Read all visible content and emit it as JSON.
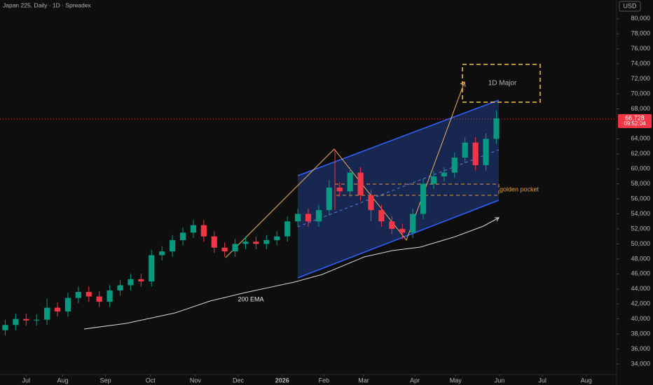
{
  "chart_data": {
    "type": "candlestick",
    "title": "Japan 225, Daily · 1D · Spreadex",
    "currency": "USD",
    "last_price_label": "66,728",
    "countdown": "09:52:04",
    "annotations": {
      "major": "1D Major",
      "pocket": "golden pocket",
      "ema": "200 EMA"
    },
    "up_color": "#089981",
    "down_color": "#f23645",
    "grid": false,
    "xlim": [
      -0.5,
      58.5
    ],
    "xticks": [
      {
        "value": 2.0,
        "label": "Jul"
      },
      {
        "value": 5.5,
        "label": "Aug"
      },
      {
        "value": 9.6,
        "label": "Sep"
      },
      {
        "value": 13.9,
        "label": "Oct"
      },
      {
        "value": 18.2,
        "label": "Nov"
      },
      {
        "value": 22.3,
        "label": "Dec"
      },
      {
        "value": 26.5,
        "label": "2026"
      },
      {
        "value": 30.5,
        "label": "Feb"
      },
      {
        "value": 34.3,
        "label": "Mar"
      },
      {
        "value": 39.2,
        "label": "Apr"
      },
      {
        "value": 43.1,
        "label": "May"
      },
      {
        "value": 47.3,
        "label": "Jun"
      },
      {
        "value": 51.4,
        "label": "Jul"
      },
      {
        "value": 55.6,
        "label": "Aug"
      }
    ],
    "ylim": [
      32600,
      82500
    ],
    "yticks": [
      {
        "value": 34000,
        "label": "34,000"
      },
      {
        "value": 36000,
        "label": "36,000"
      },
      {
        "value": 38000,
        "label": "38,000"
      },
      {
        "value": 40000,
        "label": "40,000"
      },
      {
        "value": 42000,
        "label": "42,000"
      },
      {
        "value": 44000,
        "label": "44,000"
      },
      {
        "value": 46000,
        "label": "46,000"
      },
      {
        "value": 48000,
        "label": "48,000"
      },
      {
        "value": 50000,
        "label": "50,000"
      },
      {
        "value": 52000,
        "label": "52,000"
      },
      {
        "value": 54000,
        "label": "54,000"
      },
      {
        "value": 56000,
        "label": "56,000"
      },
      {
        "value": 58000,
        "label": "58,000"
      },
      {
        "value": 60000,
        "label": "60,000"
      },
      {
        "value": 62000,
        "label": "62,000"
      },
      {
        "value": 64000,
        "label": "64,000"
      },
      {
        "value": 68000,
        "label": "68,000"
      },
      {
        "value": 70000,
        "label": "70,000"
      },
      {
        "value": 72000,
        "label": "72,000"
      },
      {
        "value": 74000,
        "label": "74,000"
      },
      {
        "value": 76000,
        "label": "76,000"
      },
      {
        "value": 78000,
        "label": "78,000"
      },
      {
        "value": 80000,
        "label": "80,000"
      }
    ],
    "open": [
      38500,
      39200,
      40000,
      39800,
      39900,
      41500,
      41000,
      42800,
      43600,
      43000,
      42300,
      43800,
      44500,
      45300,
      45000,
      48500,
      49000,
      50500,
      51500,
      52500,
      51000,
      49500,
      49000,
      50000,
      50300,
      50000,
      50500,
      51000,
      53000,
      54000,
      53000,
      54500,
      57500,
      57000,
      59500,
      56500,
      54500,
      53000,
      52000,
      51500,
      54000,
      58000,
      59000,
      59500,
      61500,
      63500,
      60500,
      64000
    ],
    "high": [
      39900,
      40700,
      40700,
      40600,
      42700,
      42200,
      43500,
      44300,
      44300,
      43700,
      44500,
      45200,
      46000,
      46000,
      49200,
      49700,
      51200,
      52200,
      53200,
      53200,
      51700,
      50200,
      50700,
      51000,
      51000,
      51200,
      51700,
      53700,
      54700,
      54700,
      55200,
      58500,
      58200,
      60200,
      60200,
      57200,
      55200,
      53700,
      52700,
      54700,
      58700,
      59700,
      60200,
      62200,
      64200,
      64200,
      64700,
      67800
    ],
    "low": [
      37800,
      38500,
      39100,
      39100,
      39200,
      40300,
      40300,
      42100,
      42300,
      41600,
      41600,
      43100,
      43800,
      44300,
      44300,
      47800,
      48300,
      49800,
      50800,
      50300,
      48800,
      48300,
      48300,
      49300,
      49300,
      49300,
      49800,
      50300,
      52300,
      52300,
      52300,
      53800,
      56300,
      56300,
      55800,
      53000,
      52300,
      51300,
      50600,
      50800,
      53300,
      57300,
      58300,
      58800,
      60800,
      59800,
      59800,
      63300
    ],
    "close": [
      39200,
      40000,
      39800,
      39900,
      41500,
      41000,
      42800,
      43600,
      43000,
      42300,
      43800,
      44500,
      45300,
      45000,
      48500,
      49000,
      50500,
      51500,
      52500,
      51000,
      49500,
      49000,
      50000,
      50300,
      50000,
      50500,
      51000,
      53000,
      54000,
      53000,
      54500,
      57500,
      57000,
      59500,
      56500,
      54500,
      53000,
      52000,
      51500,
      54000,
      58000,
      59000,
      59500,
      61500,
      63500,
      60500,
      64000,
      66728
    ]
  }
}
